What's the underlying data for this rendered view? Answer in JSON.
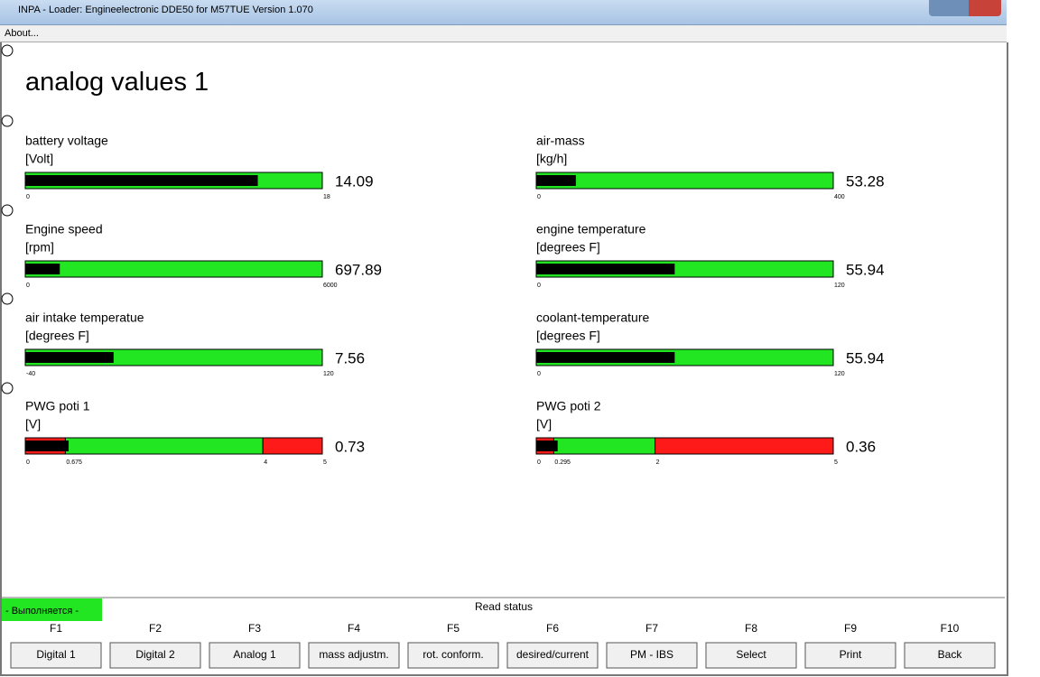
{
  "window": {
    "title": "INPA - Loader: Engineelectronic DDE50 for M57TUE Version 1.070",
    "menu": "About..."
  },
  "page_title": "analog values 1",
  "gauges": [
    {
      "label": "battery voltage",
      "unit": "[Volt]",
      "value": 14.09,
      "ticks": [
        0,
        18
      ]
    },
    {
      "label": "air-mass",
      "unit": "[kg/h]",
      "value": 53.28,
      "ticks": [
        0,
        400
      ]
    },
    {
      "label": "Engine speed",
      "unit": "[rpm]",
      "value": 697.89,
      "ticks": [
        0,
        6000
      ]
    },
    {
      "label": "engine temperature",
      "unit": "[degrees F]",
      "value": 55.94,
      "ticks": [
        0,
        120
      ]
    },
    {
      "label": "air intake temperatue",
      "unit": "[degrees F]",
      "value": 7.56,
      "ticks": [
        -40,
        120
      ]
    },
    {
      "label": "coolant-temperature",
      "unit": "[degrees F]",
      "value": 55.94,
      "ticks": [
        0,
        120
      ]
    },
    {
      "label": "PWG poti 1",
      "unit": "[V]",
      "value": 0.73,
      "ticks": [
        0,
        0.675,
        4,
        5
      ],
      "ok_range": [
        0.675,
        4
      ]
    },
    {
      "label": "PWG poti 2",
      "unit": "[V]",
      "value": 0.36,
      "ticks": [
        0,
        0.295,
        2,
        5
      ],
      "ok_range": [
        0.295,
        2
      ]
    }
  ],
  "status": {
    "left": "- Выполняется -",
    "center": "Read status"
  },
  "function_keys": [
    {
      "key": "F1",
      "label": "Digital 1"
    },
    {
      "key": "F2",
      "label": "Digital 2"
    },
    {
      "key": "F3",
      "label": "Analog 1"
    },
    {
      "key": "F4",
      "label": "mass adjustm."
    },
    {
      "key": "F5",
      "label": "rot. conform."
    },
    {
      "key": "F6",
      "label": "desired/current"
    },
    {
      "key": "F7",
      "label": "PM - IBS"
    },
    {
      "key": "F8",
      "label": "Select"
    },
    {
      "key": "F9",
      "label": "Print"
    },
    {
      "key": "F10",
      "label": "Back"
    }
  ]
}
